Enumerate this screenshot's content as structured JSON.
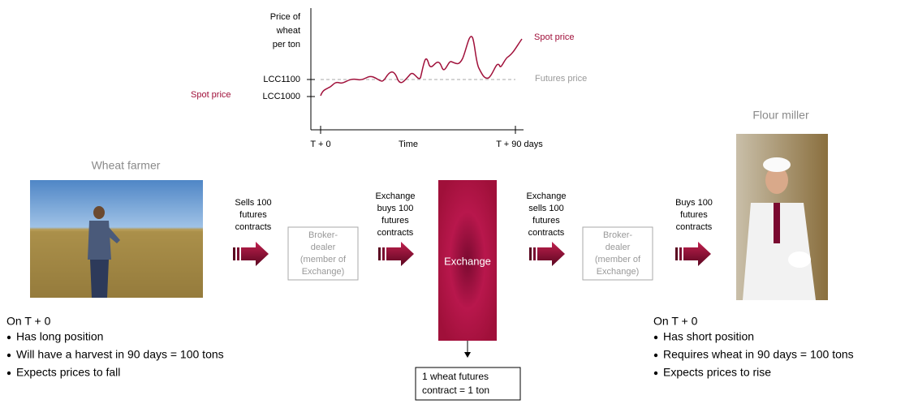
{
  "chart": {
    "y_axis_label": [
      "Price of",
      "wheat",
      "per ton"
    ],
    "ticks": [
      "LCC1100",
      "LCC1000"
    ],
    "spot_price_left": "Spot price",
    "spot_price_right": "Spot price",
    "futures_price": "Futures price",
    "x_labels": [
      "T + 0",
      "Time",
      "T + 90 days"
    ]
  },
  "farmer": {
    "title": "Wheat farmer",
    "heading": "On T + 0",
    "bullets": [
      "Has long position",
      "Will have a harvest in 90 days = 100 tons",
      "Expects prices to fall"
    ]
  },
  "miller": {
    "title": "Flour miller",
    "heading": "On T + 0",
    "bullets": [
      "Has short position",
      "Requires wheat in 90 days = 100 tons",
      "Expects prices to rise"
    ]
  },
  "flows": [
    [
      "Sells 100",
      "futures",
      "contracts"
    ],
    [
      "Exchange",
      "buys 100",
      "futures",
      "contracts"
    ],
    [
      "Exchange",
      "sells 100",
      "futures",
      "contracts"
    ],
    [
      "Buys 100",
      "futures",
      "contracts"
    ]
  ],
  "brokers": [
    [
      "Broker-",
      "dealer",
      "(member of",
      "Exchange)"
    ],
    [
      "Broker-",
      "dealer",
      "(member of",
      "Exchange)"
    ]
  ],
  "exchange": {
    "label": "Exchange",
    "note": [
      "1 wheat futures",
      "contract = 1 ton"
    ]
  }
}
